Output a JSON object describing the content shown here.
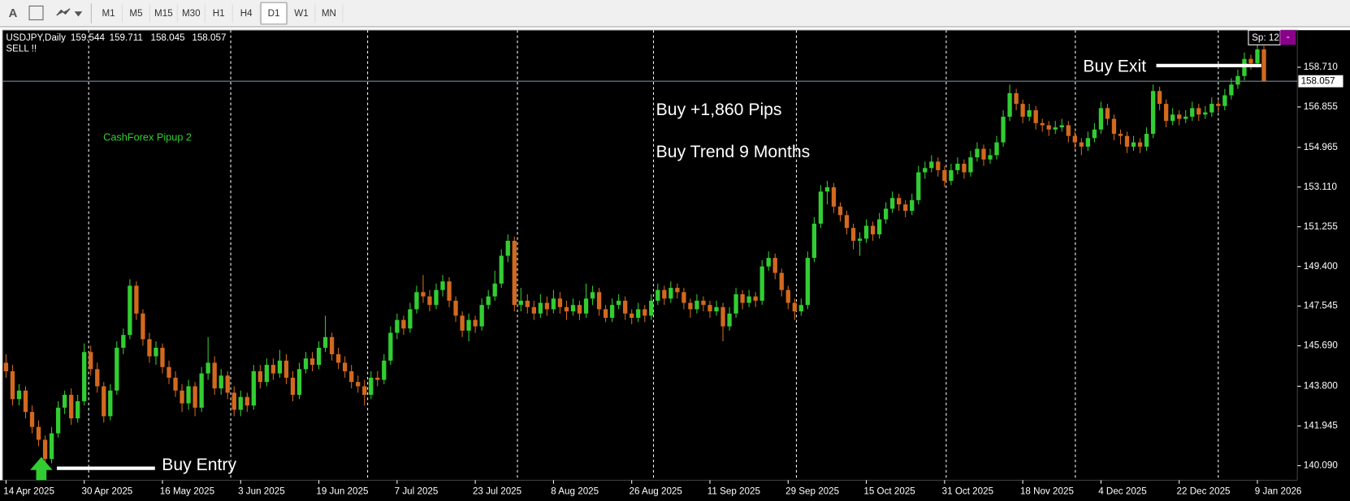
{
  "toolbar": {
    "font_button": "A",
    "timeframes": [
      "M1",
      "M5",
      "M15",
      "M30",
      "H1",
      "H4",
      "D1",
      "W1",
      "MN"
    ],
    "active": 6
  },
  "chart_data": {
    "type": "candlestick",
    "symbol": "USDJPY,Daily",
    "signal": "SELL !!",
    "indicator_label": "CashForex Pipup 2",
    "annotations": [
      "Buy +1,860 Pips",
      "Buy Trend 9 Months"
    ],
    "entry_label": "Buy Entry",
    "exit_label": "Buy Exit",
    "spread": "Sp: 12",
    "spread_button": "-",
    "up_color": "#32cd32",
    "down_color": "#d2691e",
    "background": "#000000",
    "ylim": [
      139.405,
      160.443
    ],
    "yticks": [
      {
        "value": 140.09,
        "label": "140.090"
      },
      {
        "value": 141.945,
        "label": "141.945"
      },
      {
        "value": 143.8,
        "label": "143.800"
      },
      {
        "value": 145.69,
        "label": "145.690"
      },
      {
        "value": 147.545,
        "label": "147.545"
      },
      {
        "value": 149.4,
        "label": "149.400"
      },
      {
        "value": 151.255,
        "label": "151.255"
      },
      {
        "value": 153.11,
        "label": "153.110"
      },
      {
        "value": 154.965,
        "label": "154.965"
      },
      {
        "value": 156.855,
        "label": "156.855"
      },
      {
        "value": 158.71,
        "label": "158.710"
      }
    ],
    "categories": [
      "14 Apr 2025",
      null,
      null,
      null,
      null,
      null,
      null,
      null,
      null,
      null,
      null,
      null,
      "30 Apr 2025",
      null,
      null,
      null,
      null,
      null,
      null,
      null,
      null,
      null,
      null,
      null,
      "16 May 2025",
      null,
      null,
      null,
      null,
      null,
      null,
      null,
      null,
      null,
      null,
      null,
      "3 Jun 2025",
      null,
      null,
      null,
      null,
      null,
      null,
      null,
      null,
      null,
      null,
      null,
      "19 Jun 2025",
      null,
      null,
      null,
      null,
      null,
      null,
      null,
      null,
      null,
      null,
      null,
      "7 Jul 2025",
      null,
      null,
      null,
      null,
      null,
      null,
      null,
      null,
      null,
      null,
      null,
      "23 Jul 2025",
      null,
      null,
      null,
      null,
      null,
      null,
      null,
      null,
      null,
      null,
      null,
      "8 Aug 2025",
      null,
      null,
      null,
      null,
      null,
      null,
      null,
      null,
      null,
      null,
      null,
      "26 Aug 2025",
      null,
      null,
      null,
      null,
      null,
      null,
      null,
      null,
      null,
      null,
      null,
      "11 Sep 2025",
      null,
      null,
      null,
      null,
      null,
      null,
      null,
      null,
      null,
      null,
      null,
      "29 Sep 2025",
      null,
      null,
      null,
      null,
      null,
      null,
      null,
      null,
      null,
      null,
      null,
      "15 Oct 2025",
      null,
      null,
      null,
      null,
      null,
      null,
      null,
      null,
      null,
      null,
      null,
      "31 Oct 2025",
      null,
      null,
      null,
      null,
      null,
      null,
      null,
      null,
      null,
      null,
      null,
      "18 Nov 2025",
      null,
      null,
      null,
      null,
      null,
      null,
      null,
      null,
      null,
      null,
      null,
      "4 Dec 2025",
      null,
      null,
      null,
      null,
      null,
      null,
      null,
      null,
      null,
      null,
      null,
      "22 Dec 2025",
      null,
      null,
      null,
      null,
      null,
      null,
      null,
      null,
      null,
      null,
      null,
      "9 Jan 2026",
      null
    ],
    "ohlc": [
      [
        144.9,
        145.3,
        144.2,
        144.5
      ],
      [
        144.5,
        144.8,
        142.9,
        143.2
      ],
      [
        143.2,
        143.9,
        142.9,
        143.6
      ],
      [
        143.6,
        143.8,
        142.3,
        142.6
      ],
      [
        142.6,
        142.9,
        141.6,
        141.9
      ],
      [
        141.9,
        142.2,
        141.0,
        141.3
      ],
      [
        141.3,
        141.5,
        140.1,
        140.4
      ],
      [
        140.4,
        141.9,
        140.2,
        141.6
      ],
      [
        141.6,
        143.1,
        141.4,
        142.8
      ],
      [
        142.8,
        143.6,
        142.5,
        143.4
      ],
      [
        143.4,
        143.7,
        142.0,
        142.3
      ],
      [
        142.3,
        143.4,
        142.1,
        143.1
      ],
      [
        143.1,
        145.8,
        142.9,
        145.4
      ],
      [
        145.4,
        145.7,
        144.3,
        144.6
      ],
      [
        144.6,
        144.9,
        143.5,
        143.8
      ],
      [
        143.8,
        144.0,
        142.1,
        142.4
      ],
      [
        142.4,
        143.9,
        142.2,
        143.6
      ],
      [
        143.6,
        145.9,
        143.4,
        145.6
      ],
      [
        145.6,
        146.5,
        145.3,
        146.2
      ],
      [
        146.2,
        148.8,
        146.0,
        148.5
      ],
      [
        148.5,
        148.7,
        146.9,
        147.2
      ],
      [
        147.2,
        147.4,
        145.7,
        146.0
      ],
      [
        146.0,
        146.3,
        144.9,
        145.2
      ],
      [
        145.2,
        145.9,
        144.8,
        145.6
      ],
      [
        145.6,
        145.8,
        144.4,
        144.7
      ],
      [
        144.7,
        145.0,
        143.9,
        144.2
      ],
      [
        144.2,
        144.5,
        143.3,
        143.6
      ],
      [
        143.6,
        143.9,
        142.6,
        143.0
      ],
      [
        143.0,
        144.1,
        142.7,
        143.8
      ],
      [
        143.8,
        144.0,
        142.4,
        142.8
      ],
      [
        142.8,
        144.7,
        142.6,
        144.4
      ],
      [
        144.4,
        146.1,
        144.1,
        144.9
      ],
      [
        144.9,
        145.2,
        143.4,
        143.7
      ],
      [
        143.7,
        144.6,
        143.4,
        144.3
      ],
      [
        144.3,
        144.5,
        143.2,
        143.5
      ],
      [
        143.5,
        143.8,
        142.4,
        142.7
      ],
      [
        142.7,
        143.6,
        142.4,
        143.3
      ],
      [
        143.3,
        143.5,
        142.6,
        142.9
      ],
      [
        142.9,
        144.8,
        142.7,
        144.5
      ],
      [
        144.5,
        144.8,
        143.7,
        144.0
      ],
      [
        144.0,
        145.1,
        143.8,
        144.8
      ],
      [
        144.8,
        145.1,
        144.1,
        144.4
      ],
      [
        144.4,
        145.5,
        144.2,
        145.0
      ],
      [
        145.0,
        145.3,
        143.9,
        144.2
      ],
      [
        144.2,
        144.5,
        143.1,
        143.4
      ],
      [
        143.4,
        144.9,
        143.2,
        144.6
      ],
      [
        144.6,
        145.4,
        144.4,
        145.1
      ],
      [
        145.1,
        145.4,
        144.5,
        144.8
      ],
      [
        144.8,
        145.9,
        144.6,
        145.6
      ],
      [
        145.6,
        147.1,
        145.4,
        146.1
      ],
      [
        146.1,
        146.3,
        145.0,
        145.3
      ],
      [
        145.3,
        145.6,
        144.6,
        144.9
      ],
      [
        144.9,
        145.2,
        144.2,
        144.5
      ],
      [
        144.5,
        144.8,
        143.7,
        144.0
      ],
      [
        144.0,
        144.3,
        143.5,
        143.8
      ],
      [
        143.8,
        144.1,
        142.9,
        143.4
      ],
      [
        143.4,
        144.5,
        143.2,
        144.2
      ],
      [
        144.2,
        144.5,
        143.8,
        144.1
      ],
      [
        144.1,
        145.3,
        143.9,
        145.0
      ],
      [
        145.0,
        146.6,
        144.8,
        146.3
      ],
      [
        146.3,
        147.2,
        146.0,
        146.9
      ],
      [
        146.9,
        147.1,
        146.2,
        146.5
      ],
      [
        146.5,
        147.7,
        146.3,
        147.4
      ],
      [
        147.4,
        148.5,
        147.2,
        148.2
      ],
      [
        148.2,
        149.0,
        147.7,
        148.0
      ],
      [
        148.0,
        148.3,
        147.3,
        147.6
      ],
      [
        147.6,
        148.6,
        147.4,
        148.3
      ],
      [
        148.3,
        149.0,
        148.0,
        148.7
      ],
      [
        148.7,
        148.9,
        147.5,
        147.8
      ],
      [
        147.8,
        148.0,
        146.8,
        147.1
      ],
      [
        147.1,
        147.3,
        146.1,
        146.4
      ],
      [
        146.4,
        147.2,
        145.9,
        146.9
      ],
      [
        146.9,
        147.1,
        146.3,
        146.6
      ],
      [
        146.6,
        147.9,
        146.4,
        147.6
      ],
      [
        147.6,
        148.3,
        147.4,
        148.0
      ],
      [
        148.0,
        149.2,
        147.8,
        148.6
      ],
      [
        148.6,
        150.2,
        148.4,
        149.9
      ],
      [
        149.9,
        150.9,
        149.6,
        150.6
      ],
      [
        150.6,
        150.8,
        147.3,
        147.6
      ],
      [
        147.6,
        148.4,
        147.3,
        147.8
      ],
      [
        147.8,
        148.1,
        147.2,
        147.5
      ],
      [
        147.5,
        147.8,
        146.9,
        147.2
      ],
      [
        147.2,
        148.1,
        147.0,
        147.7
      ],
      [
        147.7,
        148.0,
        147.1,
        147.4
      ],
      [
        147.4,
        148.3,
        147.2,
        147.9
      ],
      [
        147.9,
        148.2,
        147.2,
        147.5
      ],
      [
        147.5,
        147.8,
        146.9,
        147.3
      ],
      [
        147.3,
        147.9,
        147.1,
        147.6
      ],
      [
        147.6,
        147.8,
        146.9,
        147.2
      ],
      [
        147.2,
        148.6,
        147.0,
        147.9
      ],
      [
        147.9,
        148.5,
        147.6,
        148.2
      ],
      [
        148.2,
        148.4,
        147.1,
        147.4
      ],
      [
        147.4,
        147.6,
        146.8,
        147.0
      ],
      [
        147.0,
        147.9,
        146.8,
        147.6
      ],
      [
        147.6,
        148.1,
        147.4,
        147.8
      ],
      [
        147.8,
        148.0,
        146.9,
        147.2
      ],
      [
        147.2,
        147.4,
        146.7,
        147.0
      ],
      [
        147.0,
        147.7,
        146.8,
        147.4
      ],
      [
        147.4,
        147.6,
        146.8,
        147.1
      ],
      [
        147.1,
        148.1,
        146.9,
        147.8
      ],
      [
        147.8,
        148.6,
        147.6,
        148.3
      ],
      [
        148.3,
        148.5,
        147.6,
        147.9
      ],
      [
        147.9,
        148.7,
        147.7,
        148.4
      ],
      [
        148.4,
        148.6,
        147.9,
        148.2
      ],
      [
        148.2,
        148.4,
        147.4,
        147.7
      ],
      [
        147.7,
        147.9,
        147.0,
        147.4
      ],
      [
        147.4,
        148.1,
        147.2,
        147.8
      ],
      [
        147.8,
        148.0,
        147.3,
        147.6
      ],
      [
        147.6,
        147.8,
        147.0,
        147.3
      ],
      [
        147.3,
        147.8,
        147.1,
        147.5
      ],
      [
        147.5,
        147.7,
        145.9,
        146.6
      ],
      [
        146.6,
        147.5,
        146.4,
        147.2
      ],
      [
        147.2,
        148.4,
        147.0,
        148.1
      ],
      [
        148.1,
        148.3,
        147.4,
        147.7
      ],
      [
        147.7,
        148.3,
        147.5,
        148.0
      ],
      [
        148.0,
        148.2,
        147.5,
        147.8
      ],
      [
        147.8,
        149.7,
        147.6,
        149.4
      ],
      [
        149.4,
        150.1,
        149.2,
        149.8
      ],
      [
        149.8,
        150.0,
        148.8,
        149.1
      ],
      [
        149.1,
        149.3,
        148.0,
        148.3
      ],
      [
        148.3,
        148.5,
        147.4,
        147.7
      ],
      [
        147.7,
        147.9,
        146.9,
        147.3
      ],
      [
        147.3,
        147.9,
        147.1,
        147.6
      ],
      [
        147.6,
        150.1,
        147.4,
        149.8
      ],
      [
        149.8,
        151.7,
        149.6,
        151.4
      ],
      [
        151.4,
        153.2,
        151.2,
        152.9
      ],
      [
        152.9,
        153.4,
        152.3,
        153.1
      ],
      [
        153.1,
        153.3,
        151.9,
        152.2
      ],
      [
        152.2,
        152.4,
        151.5,
        151.8
      ],
      [
        151.8,
        152.0,
        150.9,
        151.2
      ],
      [
        151.2,
        151.4,
        150.2,
        150.6
      ],
      [
        150.6,
        151.0,
        149.9,
        150.7
      ],
      [
        150.7,
        151.6,
        150.5,
        151.3
      ],
      [
        151.3,
        151.5,
        150.6,
        150.9
      ],
      [
        150.9,
        151.9,
        150.7,
        151.6
      ],
      [
        151.6,
        152.4,
        151.4,
        152.1
      ],
      [
        152.1,
        152.9,
        151.9,
        152.6
      ],
      [
        152.6,
        152.8,
        152.0,
        152.3
      ],
      [
        152.3,
        152.5,
        151.7,
        152.0
      ],
      [
        152.0,
        152.8,
        151.8,
        152.5
      ],
      [
        152.5,
        154.1,
        152.3,
        153.8
      ],
      [
        153.8,
        154.3,
        153.5,
        154.0
      ],
      [
        154.0,
        154.6,
        153.8,
        154.3
      ],
      [
        154.3,
        154.5,
        153.6,
        153.9
      ],
      [
        153.9,
        154.1,
        153.1,
        153.4
      ],
      [
        153.4,
        154.2,
        153.2,
        153.9
      ],
      [
        153.9,
        154.5,
        153.7,
        154.2
      ],
      [
        154.2,
        154.4,
        153.5,
        153.8
      ],
      [
        153.8,
        154.8,
        153.6,
        154.5
      ],
      [
        154.5,
        155.2,
        154.3,
        154.9
      ],
      [
        154.9,
        155.1,
        154.1,
        154.4
      ],
      [
        154.4,
        154.9,
        154.2,
        154.6
      ],
      [
        154.6,
        155.5,
        154.4,
        155.2
      ],
      [
        155.2,
        156.7,
        155.0,
        156.4
      ],
      [
        156.4,
        157.9,
        156.2,
        157.5
      ],
      [
        157.5,
        157.7,
        156.7,
        157.0
      ],
      [
        157.0,
        157.2,
        156.1,
        156.4
      ],
      [
        156.4,
        157.0,
        156.2,
        156.7
      ],
      [
        156.7,
        156.9,
        155.8,
        156.1
      ],
      [
        156.1,
        156.3,
        155.7,
        156.0
      ],
      [
        156.0,
        156.2,
        155.5,
        155.8
      ],
      [
        155.8,
        156.2,
        155.6,
        155.9
      ],
      [
        155.9,
        156.3,
        155.7,
        156.0
      ],
      [
        156.0,
        156.2,
        155.2,
        155.5
      ],
      [
        155.5,
        155.7,
        154.9,
        155.2
      ],
      [
        155.2,
        155.4,
        154.6,
        155.0
      ],
      [
        155.0,
        155.7,
        154.8,
        155.4
      ],
      [
        155.4,
        156.1,
        155.2,
        155.8
      ],
      [
        155.8,
        157.1,
        155.6,
        156.8
      ],
      [
        156.8,
        157.0,
        156.0,
        156.3
      ],
      [
        156.3,
        156.5,
        155.3,
        155.6
      ],
      [
        155.6,
        155.8,
        155.1,
        155.5
      ],
      [
        155.5,
        155.7,
        154.7,
        155.0
      ],
      [
        155.0,
        155.5,
        154.8,
        155.2
      ],
      [
        155.2,
        155.4,
        154.7,
        155.0
      ],
      [
        155.0,
        155.9,
        154.8,
        155.6
      ],
      [
        155.6,
        157.9,
        155.4,
        157.6
      ],
      [
        157.6,
        157.8,
        156.7,
        157.0
      ],
      [
        157.0,
        157.2,
        155.9,
        156.2
      ],
      [
        156.2,
        156.8,
        156.0,
        156.5
      ],
      [
        156.5,
        156.7,
        156.0,
        156.3
      ],
      [
        156.3,
        156.7,
        156.1,
        156.4
      ],
      [
        156.4,
        157.1,
        156.2,
        156.8
      ],
      [
        156.8,
        157.0,
        156.2,
        156.5
      ],
      [
        156.5,
        156.9,
        156.3,
        156.6
      ],
      [
        156.6,
        157.3,
        156.4,
        157.0
      ],
      [
        157.0,
        157.2,
        156.6,
        156.9
      ],
      [
        156.9,
        157.7,
        156.7,
        157.4
      ],
      [
        157.4,
        158.2,
        157.2,
        157.9
      ],
      [
        157.9,
        158.6,
        157.7,
        158.3
      ],
      [
        158.3,
        159.4,
        158.1,
        159.1
      ],
      [
        159.1,
        159.3,
        158.6,
        158.9
      ],
      [
        158.9,
        159.8,
        158.7,
        159.544
      ],
      [
        159.544,
        159.711,
        158.045,
        158.057
      ]
    ]
  }
}
